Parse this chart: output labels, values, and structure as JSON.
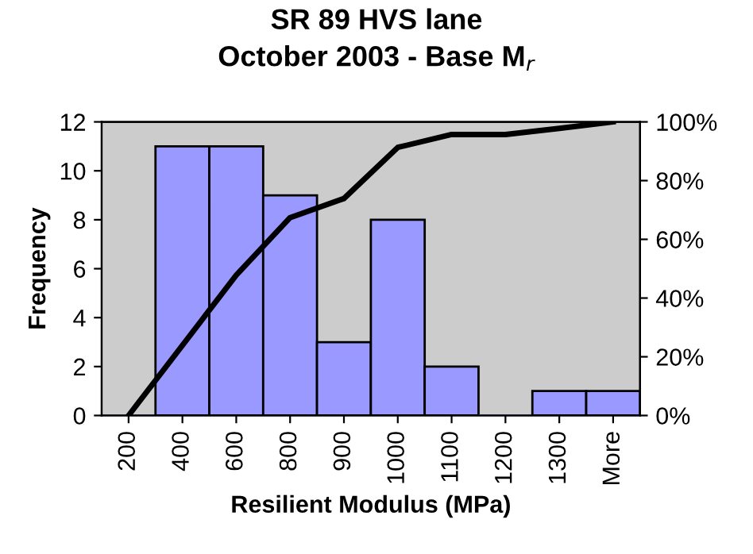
{
  "chart_data": {
    "type": "bar",
    "title": "SR 89 HVS lane\nOctober 2003 - Base M$_{r}$",
    "xlabel": "Resilient Modulus (MPa)",
    "ylabel": "Frequency",
    "categories": [
      "200",
      "400",
      "600",
      "800",
      "900",
      "1000",
      "1100",
      "1200",
      "1300",
      "More"
    ],
    "series": [
      {
        "color": "#9999ff",
        "values": [
          0,
          11,
          11,
          9,
          3,
          8,
          2,
          0,
          1,
          1
        ]
      },
      {
        "type": "line",
        "axis": "y2",
        "color": "#000000",
        "values": [
          0,
          23.9,
          47.8,
          67.4,
          73.9,
          91.3,
          95.7,
          95.7,
          97.8,
          100
        ]
      }
    ],
    "ylim": [
      0,
      12
    ],
    "yticks": [
      0,
      2,
      4,
      6,
      8,
      10,
      12
    ],
    "y2lim": [
      0,
      100
    ],
    "y2ticks": [
      {
        "value": 0,
        "label": "0%"
      },
      {
        "value": 20,
        "label": "20%"
      },
      {
        "value": 40,
        "label": "40%"
      },
      {
        "value": 60,
        "label": "60%"
      },
      {
        "value": 80,
        "label": "80%"
      },
      {
        "value": 100,
        "label": "100%"
      }
    ],
    "grid": false,
    "legend": false,
    "marker": "none",
    "line_style": "solid"
  }
}
